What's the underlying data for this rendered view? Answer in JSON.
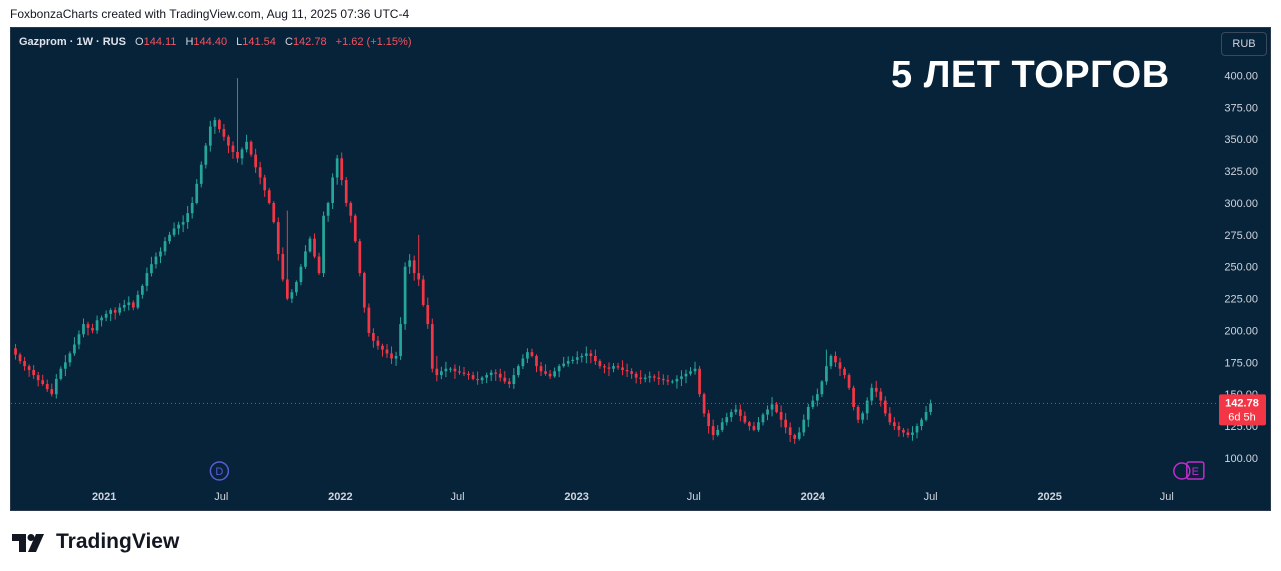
{
  "header": {
    "attribution": "FoxbonzaCharts created with TradingView.com, Aug 11, 2025 07:36 UTC-4"
  },
  "legend": {
    "symbol": "Gazprom · 1W · RUS",
    "o_label": "O",
    "o_value": "144.11",
    "h_label": "H",
    "h_value": "144.40",
    "l_label": "L",
    "l_value": "141.54",
    "c_label": "C",
    "c_value": "142.78",
    "change": "+1.62 (+1.15%)"
  },
  "currency": "RUB",
  "headline": "5 ЛЕТ ТОРГОВ",
  "footer": {
    "brand": "TradingView"
  },
  "colors": {
    "up": "#26a69a",
    "down": "#f23645",
    "background": "#06233a",
    "grid": "#0f3047",
    "axis_text": "#d1d4dc",
    "price_tag": "#f23645",
    "event_dividend": "#5b5bd6",
    "event_earnings": "#c22ccc"
  },
  "events": [
    {
      "type": "dividend",
      "label": "D",
      "x": "2021-06-28"
    },
    {
      "type": "earnings",
      "label": "E",
      "x": "2025-08-04"
    }
  ],
  "chart_data": {
    "type": "candlestick",
    "title": "",
    "xlabel": "",
    "ylabel": "",
    "timeframe": "1W",
    "xlim": [
      "2020-08-10",
      "2025-09-15"
    ],
    "ylim": [
      78,
      420
    ],
    "y_ticks": [
      100,
      125,
      150,
      175,
      200,
      225,
      250,
      275,
      300,
      325,
      350,
      375,
      400
    ],
    "y_tick_labels": [
      "100.00",
      "125.00",
      "150.00",
      "175.00",
      "200.00",
      "225.00",
      "250.00",
      "275.00",
      "300.00",
      "325.00",
      "350.00",
      "375.00",
      "400.00"
    ],
    "x_ticks": [
      {
        "label": "2021",
        "date": "2021-01-01"
      },
      {
        "label": "Jul",
        "date": "2021-07-01"
      },
      {
        "label": "2022",
        "date": "2022-01-01"
      },
      {
        "label": "Jul",
        "date": "2022-07-01"
      },
      {
        "label": "2023",
        "date": "2023-01-01"
      },
      {
        "label": "Jul",
        "date": "2023-07-01"
      },
      {
        "label": "2024",
        "date": "2024-01-01"
      },
      {
        "label": "Jul",
        "date": "2024-07-01"
      },
      {
        "label": "2025",
        "date": "2025-01-01"
      },
      {
        "label": "Jul",
        "date": "2025-07-01"
      }
    ],
    "grid": false,
    "last_price": 142.78,
    "last_price_label": "142.78",
    "countdown": "6d 5h",
    "start_date": "2020-08-10",
    "closes": [
      186,
      181,
      176,
      172,
      169,
      165,
      161,
      158,
      154,
      150,
      162,
      170,
      175,
      182,
      189,
      197,
      205,
      202,
      200,
      208,
      210,
      213,
      216,
      214,
      218,
      220,
      222,
      218,
      228,
      235,
      245,
      252,
      258,
      262,
      270,
      275,
      280,
      283,
      285,
      292,
      300,
      315,
      330,
      345,
      360,
      365,
      358,
      352,
      345,
      340,
      335,
      342,
      348,
      338,
      328,
      320,
      310,
      300,
      285,
      260,
      240,
      225,
      230,
      238,
      250,
      262,
      272,
      258,
      245,
      290,
      300,
      320,
      335,
      318,
      300,
      290,
      270,
      245,
      218,
      198,
      192,
      188,
      185,
      182,
      178,
      180,
      205,
      250,
      255,
      245,
      240,
      220,
      205,
      170,
      165,
      168,
      170,
      170,
      168,
      167,
      166,
      165,
      162,
      161,
      163,
      165,
      167,
      166,
      163,
      160,
      158,
      165,
      172,
      178,
      183,
      180,
      172,
      168,
      166,
      164,
      168,
      172,
      174,
      176,
      177,
      179,
      180,
      182,
      180,
      176,
      172,
      171,
      170,
      172,
      171,
      169,
      168,
      166,
      163,
      162,
      163,
      164,
      163,
      162,
      161,
      160,
      160,
      162,
      164,
      166,
      168,
      170,
      150,
      135,
      125,
      118,
      122,
      128,
      132,
      136,
      138,
      133,
      128,
      125,
      122,
      128,
      134,
      138,
      142,
      136,
      130,
      124,
      118,
      115,
      120,
      130,
      140,
      145,
      150,
      160,
      172,
      180,
      175,
      170,
      165,
      155,
      140,
      130,
      135,
      145,
      155,
      152,
      145,
      135,
      128,
      125,
      122,
      120,
      118,
      120,
      125,
      130,
      136,
      142.78
    ],
    "highs": {
      "50": 398,
      "61": 294,
      "90": 275,
      "94": 180,
      "173": 111,
      "180": 185,
      "183": 176
    }
  }
}
